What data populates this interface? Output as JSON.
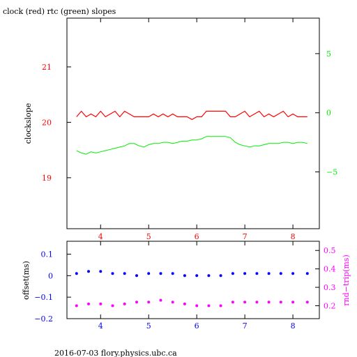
{
  "footer": "2016-07-03 flory.physics.ubc.ca",
  "chart_data": [
    {
      "type": "line",
      "title": "clock (red) rtc (green) slopes",
      "xlabel": "",
      "ylabel": "clockslope",
      "xlim": [
        3.3,
        8.55
      ],
      "ylim": [
        18.08,
        21.88
      ],
      "y2lim": [
        -9.8,
        8
      ],
      "x_ticks": [
        4,
        5,
        6,
        7,
        8
      ],
      "y_ticks": [
        19,
        20,
        21
      ],
      "y2_ticks": [
        -5,
        0,
        5
      ],
      "grid": false,
      "colors": {
        "clock": "#ff0000",
        "rtc": "#00ee00",
        "axis_left": "#ff0000",
        "axis_right": "#00ee00",
        "xticks": "#ff0000"
      },
      "series": [
        {
          "name": "clock (red)",
          "axis": "left",
          "x": [
            3.5,
            3.6,
            3.7,
            3.8,
            3.9,
            4.0,
            4.1,
            4.2,
            4.3,
            4.4,
            4.5,
            4.6,
            4.7,
            4.8,
            4.9,
            5.0,
            5.1,
            5.2,
            5.3,
            5.4,
            5.5,
            5.6,
            5.7,
            5.8,
            5.9,
            6.0,
            6.1,
            6.2,
            6.3,
            6.4,
            6.5,
            6.6,
            6.7,
            6.8,
            6.9,
            7.0,
            7.1,
            7.2,
            7.3,
            7.4,
            7.5,
            7.6,
            7.7,
            7.8,
            7.9,
            8.0,
            8.1,
            8.2,
            8.3
          ],
          "y": [
            20.1,
            20.2,
            20.1,
            20.15,
            20.1,
            20.2,
            20.1,
            20.15,
            20.2,
            20.1,
            20.2,
            20.15,
            20.1,
            20.1,
            20.1,
            20.1,
            20.15,
            20.1,
            20.15,
            20.1,
            20.15,
            20.1,
            20.1,
            20.1,
            20.05,
            20.1,
            20.1,
            20.2,
            20.2,
            20.2,
            20.2,
            20.2,
            20.1,
            20.1,
            20.15,
            20.2,
            20.1,
            20.15,
            20.2,
            20.1,
            20.15,
            20.1,
            20.15,
            20.2,
            20.1,
            20.15,
            20.1,
            20.1,
            20.1
          ]
        },
        {
          "name": "rtc (green)",
          "axis": "right",
          "x": [
            3.5,
            3.6,
            3.7,
            3.8,
            3.9,
            4.0,
            4.1,
            4.2,
            4.3,
            4.4,
            4.5,
            4.6,
            4.7,
            4.8,
            4.9,
            5.0,
            5.1,
            5.2,
            5.3,
            5.4,
            5.5,
            5.6,
            5.7,
            5.8,
            5.9,
            6.0,
            6.1,
            6.2,
            6.3,
            6.4,
            6.5,
            6.6,
            6.7,
            6.8,
            6.9,
            7.0,
            7.1,
            7.2,
            7.3,
            7.4,
            7.5,
            7.6,
            7.7,
            7.8,
            7.9,
            8.0,
            8.1,
            8.2,
            8.3
          ],
          "y": [
            -3.2,
            -3.4,
            -3.5,
            -3.3,
            -3.4,
            -3.3,
            -3.2,
            -3.1,
            -3.0,
            -2.9,
            -2.8,
            -2.6,
            -2.6,
            -2.8,
            -2.9,
            -2.7,
            -2.6,
            -2.6,
            -2.5,
            -2.5,
            -2.6,
            -2.5,
            -2.4,
            -2.4,
            -2.3,
            -2.3,
            -2.2,
            -2.0,
            -2.0,
            -2.0,
            -2.0,
            -2.0,
            -2.1,
            -2.5,
            -2.7,
            -2.8,
            -2.9,
            -2.8,
            -2.8,
            -2.7,
            -2.6,
            -2.6,
            -2.6,
            -2.5,
            -2.5,
            -2.6,
            -2.5,
            -2.5,
            -2.6
          ]
        }
      ]
    },
    {
      "type": "scatter",
      "title": "",
      "xlabel": "",
      "ylabel": "offset(ms)",
      "y2label": "rnd−trip(ms)",
      "xlim": [
        3.3,
        8.55
      ],
      "ylim": [
        -0.2,
        0.16
      ],
      "y2lim": [
        0.13,
        0.55
      ],
      "x_ticks": [
        4,
        5,
        6,
        7,
        8
      ],
      "y_ticks": [
        "0.1",
        "0",
        "−0.1",
        "−0.2"
      ],
      "y_tick_values": [
        0.1,
        0,
        -0.1,
        -0.2
      ],
      "y2_ticks": [
        "0.5",
        "0.4",
        "0.3",
        "0.2"
      ],
      "y2_tick_values": [
        0.5,
        0.4,
        0.3,
        0.2
      ],
      "grid": false,
      "colors": {
        "offset": "#0000ff",
        "roundtrip": "#ff00ff",
        "axis_left": "#0000ff",
        "axis_right": "#ff00ff"
      },
      "series": [
        {
          "name": "offset",
          "axis": "left",
          "x": [
            3.5,
            3.75,
            4.0,
            4.25,
            4.5,
            4.75,
            5.0,
            5.25,
            5.5,
            5.75,
            6.0,
            6.25,
            6.5,
            6.75,
            7.0,
            7.25,
            7.5,
            7.75,
            8.0,
            8.3
          ],
          "y": [
            0.01,
            0.02,
            0.02,
            0.01,
            0.01,
            0.0,
            0.01,
            0.01,
            0.01,
            0.0,
            0.0,
            0.0,
            0.0,
            0.01,
            0.01,
            0.01,
            0.01,
            0.01,
            0.01,
            0.01
          ]
        },
        {
          "name": "rnd-trip",
          "axis": "right",
          "x": [
            3.5,
            3.75,
            4.0,
            4.25,
            4.5,
            4.75,
            5.0,
            5.25,
            5.5,
            5.75,
            6.0,
            6.25,
            6.5,
            6.75,
            7.0,
            7.25,
            7.5,
            7.75,
            8.0,
            8.3
          ],
          "y": [
            0.2,
            0.21,
            0.21,
            0.2,
            0.21,
            0.22,
            0.22,
            0.23,
            0.22,
            0.21,
            0.2,
            0.2,
            0.2,
            0.22,
            0.22,
            0.22,
            0.22,
            0.22,
            0.22,
            0.22
          ]
        }
      ]
    }
  ]
}
